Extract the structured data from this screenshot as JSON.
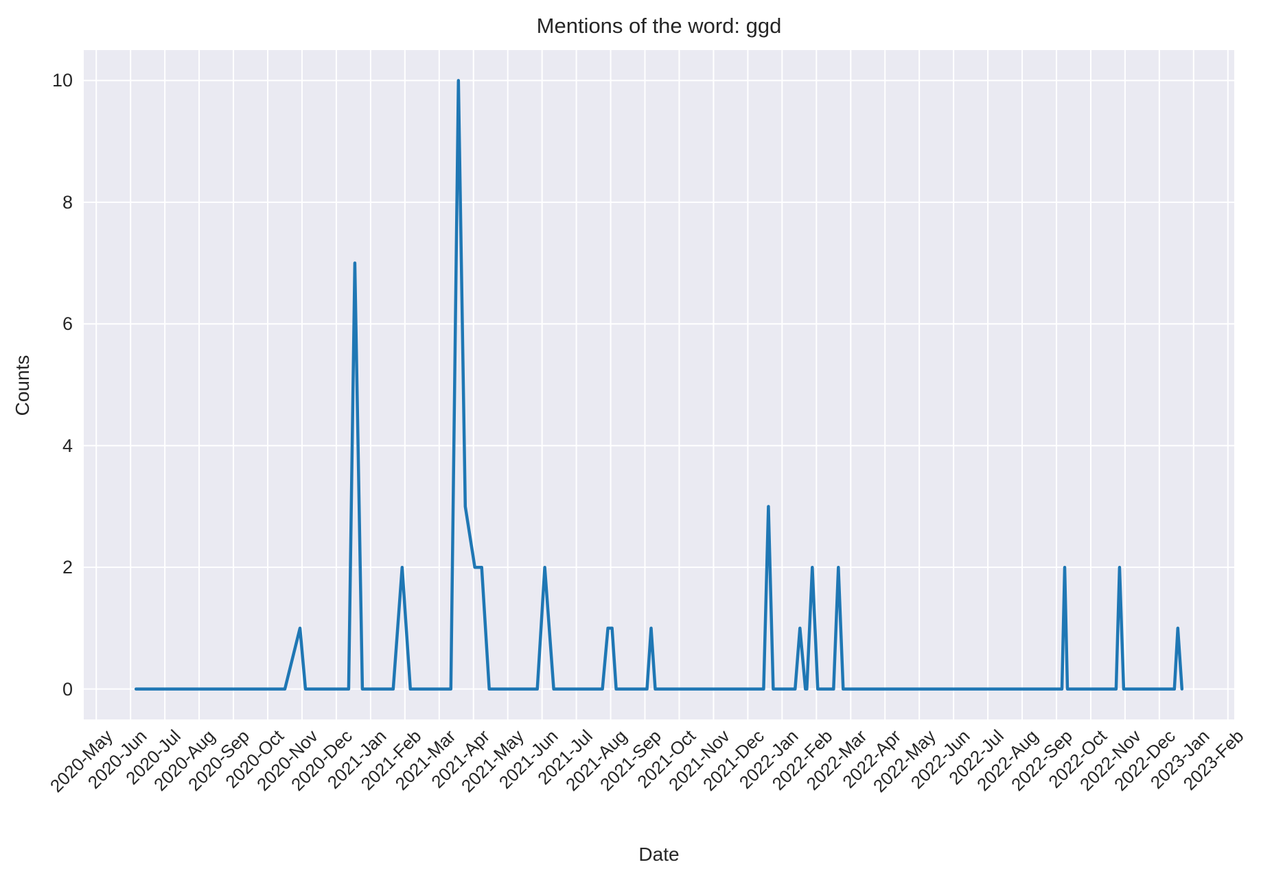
{
  "title": "Mentions of the word: ggd",
  "xlabel": "Date",
  "ylabel": "Counts",
  "colors": {
    "line": "#1f77b4",
    "plot_background": "#eaeaf2",
    "grid": "#ffffff",
    "text": "#262626",
    "figure_background": "#ffffff"
  },
  "chart_data": {
    "type": "line",
    "title": "Mentions of the word: ggd",
    "xlabel": "Date",
    "ylabel": "Counts",
    "legend": "none",
    "grid": "on (seaborn darkgrid, white gridlines)",
    "ylim": [
      -0.5,
      10.5
    ],
    "xlim": [
      -0.365,
      33.185
    ],
    "y_ticks": [
      0,
      2,
      4,
      6,
      8,
      10
    ],
    "x_tick_labels": [
      "2020-May",
      "2020-Jun",
      "2020-Jul",
      "2020-Aug",
      "2020-Sep",
      "2020-Oct",
      "2020-Nov",
      "2020-Dec",
      "2021-Jan",
      "2021-Feb",
      "2021-Mar",
      "2021-Apr",
      "2021-May",
      "2021-Jun",
      "2021-Jul",
      "2021-Aug",
      "2021-Sep",
      "2021-Oct",
      "2021-Nov",
      "2021-Dec",
      "2022-Jan",
      "2022-Feb",
      "2022-Mar",
      "2022-Apr",
      "2022-May",
      "2022-Jun",
      "2022-Jul",
      "2022-Aug",
      "2022-Sep",
      "2022-Oct",
      "2022-Nov",
      "2022-Dec",
      "2023-Jan",
      "2023-Feb"
    ],
    "x_unit": "months since 2020-May (fractional = position within month)",
    "series": [
      {
        "name": "ggd mention counts",
        "points": [
          [
            1.16,
            0
          ],
          [
            5.5,
            0
          ],
          [
            5.94,
            1
          ],
          [
            6.1,
            0
          ],
          [
            7.36,
            0
          ],
          [
            7.54,
            7
          ],
          [
            7.76,
            0
          ],
          [
            8.66,
            0
          ],
          [
            8.92,
            2
          ],
          [
            9.16,
            0
          ],
          [
            10.34,
            0
          ],
          [
            10.56,
            10
          ],
          [
            10.76,
            3
          ],
          [
            11.04,
            2
          ],
          [
            11.24,
            2
          ],
          [
            11.46,
            0
          ],
          [
            12.86,
            0
          ],
          [
            13.08,
            2
          ],
          [
            13.34,
            0
          ],
          [
            14.76,
            0
          ],
          [
            14.92,
            1
          ],
          [
            15.04,
            1
          ],
          [
            15.16,
            0
          ],
          [
            16.06,
            0
          ],
          [
            16.18,
            1
          ],
          [
            16.3,
            0
          ],
          [
            19.46,
            0
          ],
          [
            19.6,
            3
          ],
          [
            19.74,
            0
          ],
          [
            20.38,
            0
          ],
          [
            20.52,
            1
          ],
          [
            20.68,
            0
          ],
          [
            20.72,
            0
          ],
          [
            20.88,
            2
          ],
          [
            21.04,
            0
          ],
          [
            21.5,
            0
          ],
          [
            21.64,
            2
          ],
          [
            21.78,
            0
          ],
          [
            28.16,
            0
          ],
          [
            28.24,
            2
          ],
          [
            28.32,
            0
          ],
          [
            29.74,
            0
          ],
          [
            29.84,
            2
          ],
          [
            29.96,
            0
          ],
          [
            31.44,
            0
          ],
          [
            31.54,
            1
          ],
          [
            31.66,
            0
          ]
        ]
      }
    ],
    "notable_peaks": [
      {
        "approx_date": "late 2020-Oct",
        "value": 1
      },
      {
        "approx_date": "mid 2020-Dec",
        "value": 7
      },
      {
        "approx_date": "late 2021-Jan",
        "value": 2
      },
      {
        "approx_date": "mid 2021-Mar",
        "value": 10
      },
      {
        "approx_date": "late 2021-Mar",
        "value": 3
      },
      {
        "approx_date": "early 2021-Apr",
        "value": 2
      },
      {
        "approx_date": "early 2021-Jun",
        "value": 2
      },
      {
        "approx_date": "around 2021-Aug-01",
        "value": 1
      },
      {
        "approx_date": "early 2021-Sep",
        "value": 1
      },
      {
        "approx_date": "mid 2021-Dec",
        "value": 3
      },
      {
        "approx_date": "mid 2022-Jan",
        "value": 1
      },
      {
        "approx_date": "late 2022-Jan",
        "value": 2
      },
      {
        "approx_date": "mid 2022-Feb",
        "value": 2
      },
      {
        "approx_date": "early 2022-Sep",
        "value": 2
      },
      {
        "approx_date": "late 2022-Oct",
        "value": 2
      },
      {
        "approx_date": "mid 2022-Dec",
        "value": 1
      }
    ]
  }
}
